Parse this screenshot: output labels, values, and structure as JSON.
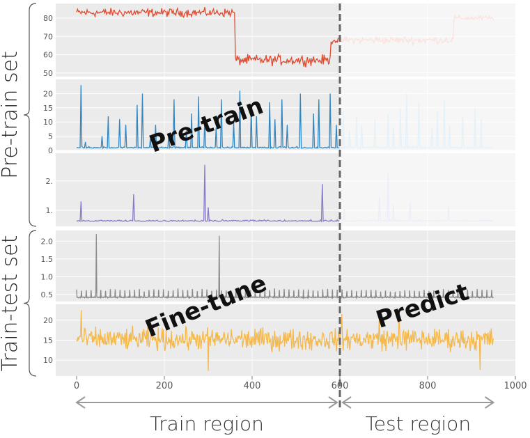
{
  "chart_data": {
    "type": "line",
    "x_ticks": [
      "0",
      "200",
      "400",
      "600",
      "800",
      "1000"
    ],
    "xlim": [
      0,
      1000
    ],
    "x_range": [
      0,
      950
    ],
    "split_x": 600,
    "groups": [
      {
        "label": "Pre-train set",
        "panels": [
          0,
          1,
          2
        ]
      },
      {
        "label": "Train-test set",
        "panels": [
          3,
          4
        ]
      }
    ],
    "regions": [
      {
        "label": "Train region",
        "from": 0,
        "to": 600
      },
      {
        "label": "Test region",
        "from": 600,
        "to": 950
      }
    ],
    "phase_labels": [
      {
        "text": "Pre-train",
        "panel": 1
      },
      {
        "text": "Fine-tune",
        "panel": 3
      },
      {
        "text": "Predict",
        "panel": 4
      }
    ],
    "panels": [
      {
        "color": "#e04a2f",
        "test_color": "#f6c0b3",
        "yticks": [
          "80",
          "70",
          "60",
          "50"
        ],
        "ytick_values": [
          80,
          70,
          60,
          50
        ],
        "ylim": [
          48,
          88
        ],
        "kind": "level",
        "segments": [
          {
            "from": 0,
            "to": 362,
            "level": 83,
            "noise": 2
          },
          {
            "from": 362,
            "to": 580,
            "level": 57,
            "noise": 2.5
          },
          {
            "from": 580,
            "to": 860,
            "level": 68,
            "noise": 1.8
          },
          {
            "from": 860,
            "to": 950,
            "level": 80,
            "noise": 1.2
          }
        ]
      },
      {
        "color": "#2f86c1",
        "test_color": "#c3dff0",
        "yticks": [
          "20",
          "15",
          "10",
          "5",
          "0"
        ],
        "ytick_values": [
          20,
          15,
          10,
          5,
          0
        ],
        "ylim": [
          0,
          25
        ],
        "kind": "spikes",
        "base": 0.8,
        "noise": 0.4,
        "spikes": [
          [
            10,
            23
          ],
          [
            20,
            3
          ],
          [
            35,
            8
          ],
          [
            43,
            14
          ],
          [
            58,
            5
          ],
          [
            72,
            12
          ],
          [
            85,
            7
          ],
          [
            98,
            11
          ],
          [
            112,
            9
          ],
          [
            125,
            6
          ],
          [
            138,
            16
          ],
          [
            150,
            20
          ],
          [
            168,
            4
          ],
          [
            180,
            9
          ],
          [
            195,
            13
          ],
          [
            210,
            6
          ],
          [
            222,
            18
          ],
          [
            237,
            10
          ],
          [
            250,
            7
          ],
          [
            262,
            13
          ],
          [
            278,
            19
          ],
          [
            292,
            11
          ],
          [
            305,
            15
          ],
          [
            318,
            8
          ],
          [
            330,
            18
          ],
          [
            345,
            13
          ],
          [
            358,
            10
          ],
          [
            372,
            21
          ],
          [
            385,
            7
          ],
          [
            398,
            15
          ],
          [
            410,
            12
          ],
          [
            425,
            6
          ],
          [
            440,
            17
          ],
          [
            452,
            11
          ],
          [
            468,
            18
          ],
          [
            480,
            9
          ],
          [
            495,
            14
          ],
          [
            510,
            20
          ],
          [
            525,
            8
          ],
          [
            540,
            13
          ],
          [
            552,
            18
          ],
          [
            565,
            11
          ],
          [
            578,
            20
          ],
          [
            592,
            9
          ],
          [
            608,
            14
          ],
          [
            622,
            7
          ],
          [
            638,
            12
          ],
          [
            650,
            9
          ],
          [
            665,
            16
          ],
          [
            680,
            11
          ],
          [
            695,
            18
          ],
          [
            710,
            13
          ],
          [
            722,
            8
          ],
          [
            738,
            15
          ],
          [
            752,
            20
          ],
          [
            765,
            10
          ],
          [
            780,
            17
          ],
          [
            795,
            12
          ],
          [
            810,
            8
          ],
          [
            822,
            14
          ],
          [
            838,
            18
          ],
          [
            850,
            9
          ],
          [
            865,
            16
          ],
          [
            880,
            12
          ],
          [
            895,
            7
          ],
          [
            908,
            15
          ],
          [
            922,
            11
          ],
          [
            935,
            22
          ]
        ]
      },
      {
        "color": "#8a78cc",
        "test_color": "#dcd5f0",
        "yticks": [
          "2.",
          "1."
        ],
        "ytick_values": [
          2,
          1
        ],
        "ylim": [
          0.45,
          2.95
        ],
        "kind": "spikes",
        "base": 0.62,
        "noise": 0.04,
        "spikes": [
          [
            10,
            1.3
          ],
          [
            130,
            1.55
          ],
          [
            185,
            1.0
          ],
          [
            292,
            2.55
          ],
          [
            300,
            1.1
          ],
          [
            415,
            1.75
          ],
          [
            560,
            1.9
          ],
          [
            610,
            1.05
          ],
          [
            690,
            1.45
          ],
          [
            710,
            2.3
          ],
          [
            722,
            1.2
          ],
          [
            760,
            1.3
          ],
          [
            848,
            1.15
          ],
          [
            905,
            1.1
          ]
        ]
      },
      {
        "color": "#8a8a8a",
        "test_color": "#8a8a8a",
        "yticks": [
          "2.0",
          "1.5",
          "1.0",
          "0.5"
        ],
        "ytick_values": [
          2.0,
          1.5,
          1.0,
          0.5
        ],
        "ylim": [
          0.3,
          2.3
        ],
        "kind": "periodic",
        "base": 0.42,
        "noise": 0.015,
        "period": 11,
        "spike_height": 0.62,
        "big_spikes": [
          [
            45,
            2.2
          ],
          [
            325,
            2.15
          ]
        ]
      },
      {
        "color": "#f5b84a",
        "test_color": "#f5b84a",
        "yticks": [
          "20",
          "15",
          "10"
        ],
        "ytick_values": [
          20,
          15,
          10
        ],
        "ylim": [
          6,
          24
        ],
        "kind": "noise",
        "base": 15.2,
        "noise": 2.4,
        "extremes": [
          [
            10,
            22.6
          ],
          [
            300,
            7.3
          ],
          [
            605,
            21.5
          ],
          [
            690,
            21.2
          ],
          [
            735,
            22.5
          ],
          [
            920,
            7.5
          ]
        ]
      }
    ]
  }
}
